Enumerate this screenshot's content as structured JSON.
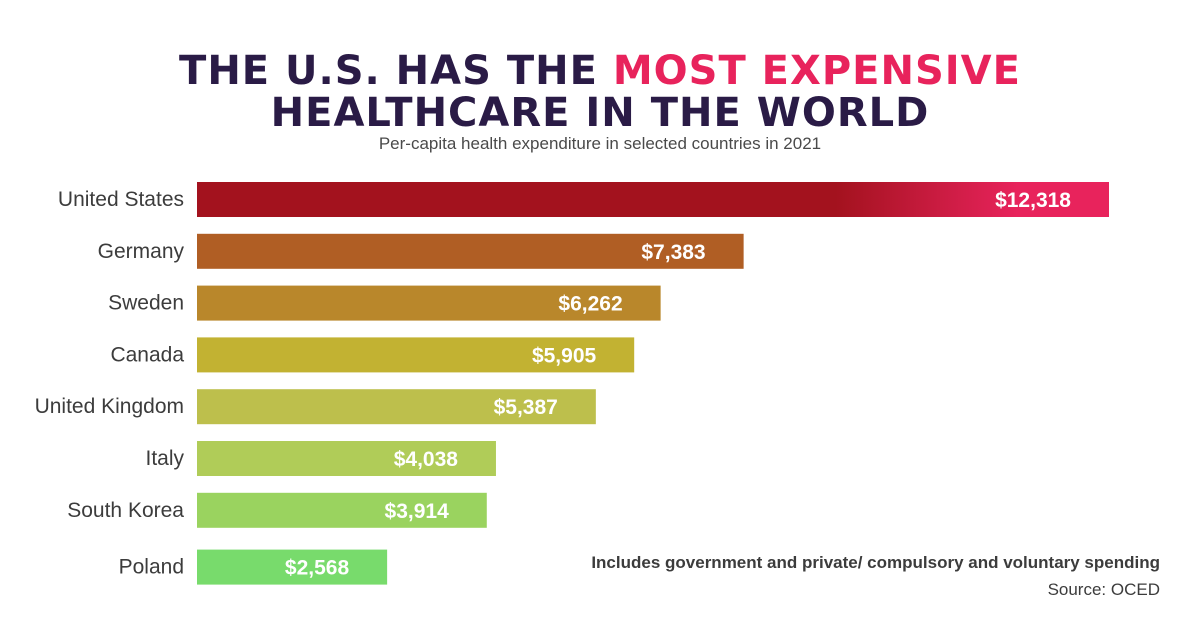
{
  "title": {
    "line1_prefix": "THE U.S. HAS THE ",
    "line1_highlight": "MOST EXPENSIVE",
    "line2": "HEALTHCARE IN THE WORLD"
  },
  "subtitle": "Per-capita health expenditure in selected countries in 2021",
  "footnote": "Includes government and private/ compulsory and voluntary spending",
  "source": "Source: OCED",
  "colors": {
    "title": "#2a1b46",
    "highlight": "#e8235c",
    "bar_label": "#ffffff"
  },
  "chart_data": {
    "type": "bar",
    "orientation": "horizontal",
    "title": "THE U.S. HAS THE MOST EXPENSIVE HEALTHCARE IN THE WORLD",
    "subtitle": "Per-capita health expenditure in selected countries in 2021",
    "xlabel": "",
    "ylabel": "",
    "grid": false,
    "xlim": [
      0,
      12318
    ],
    "categories": [
      "United States",
      "Germany",
      "Sweden",
      "Canada",
      "United Kingdom",
      "Italy",
      "South Korea",
      "Poland"
    ],
    "values": [
      12318,
      7383,
      6262,
      5905,
      5387,
      4038,
      3914,
      2568
    ],
    "value_labels": [
      "$12,318",
      "$7,383",
      "$6,262",
      "$5,905",
      "$5,387",
      "$4,038",
      "$3,914",
      "$2,568"
    ],
    "bar_colors": [
      "#a3121e",
      "#b05e24",
      "#b9872b",
      "#c2b232",
      "#bdbf4c",
      "#b0cc58",
      "#9ad35f",
      "#78db6c"
    ],
    "gradient_end_color": "#e8235c"
  }
}
